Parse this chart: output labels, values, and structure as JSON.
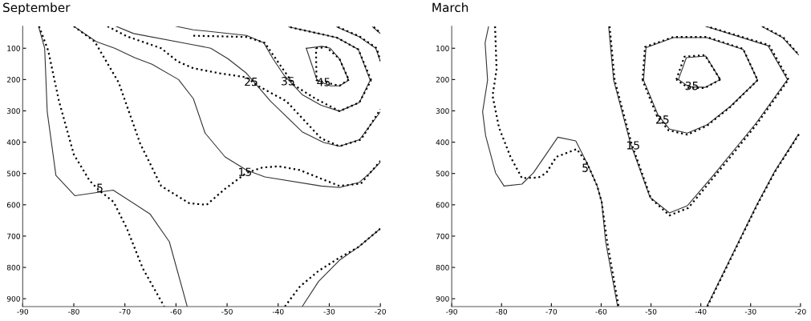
{
  "chart_data": [
    {
      "type": "line",
      "title": "September",
      "xlim": [
        -90,
        -20
      ],
      "ylim": [
        925,
        30
      ],
      "xticks": [
        -90,
        -80,
        -70,
        -60,
        -50,
        -40,
        -30,
        -20
      ],
      "yticks": [
        100,
        200,
        300,
        400,
        500,
        600,
        700,
        800,
        900
      ],
      "series": [
        {
          "color": "#333333",
          "line_style": "solid",
          "x": [
            -86.9,
            -85.7,
            -85.2,
            -83.5,
            -79.8,
            -72.3,
            -65.1,
            -61.3,
            -57.8
          ],
          "values": [
            30,
            100,
            303,
            506,
            571,
            553,
            629,
            718,
            925
          ]
        },
        {
          "color": "#000000",
          "line_style": "dotted",
          "x": [
            -86.8,
            -85,
            -82.9,
            -80,
            -76.9,
            -75.1,
            -72.2,
            -69.6,
            -66.5,
            -62.3
          ],
          "values": [
            30,
            108,
            269,
            439,
            523,
            553,
            591,
            676,
            803,
            925
          ]
        },
        {
          "color": "#333333",
          "line_style": "solid",
          "x": [
            -80,
            -75.6,
            -72,
            -68.1,
            -64.7,
            -59.5,
            -56.6,
            -54.3,
            -50.4,
            -46.2,
            -42.6,
            -31.6,
            -28,
            -24.1,
            -22,
            -20
          ],
          "values": [
            30,
            79,
            100,
            130,
            151,
            200,
            261,
            371,
            447,
            489,
            511,
            540,
            545,
            528,
            498,
            464
          ]
        },
        {
          "color": "#000000",
          "line_style": "dotted",
          "x": [
            -80,
            -75.9,
            -71.2,
            -67,
            -62.9,
            -57.4,
            -54,
            -50.4,
            -46.2,
            -43.1,
            -39.9,
            -35.8,
            -28,
            -23.8,
            -20
          ],
          "values": [
            30,
            79,
            210,
            405,
            540,
            595,
            600,
            549,
            498,
            481,
            477,
            489,
            540,
            532,
            460
          ]
        },
        {
          "color": "#333333",
          "line_style": "solid",
          "x": [
            -71.7,
            -68.3,
            -56.6,
            -53.2,
            -49.8,
            -46.2,
            -44.6,
            -41.5,
            -35.3,
            -31.1,
            -28,
            -24.1,
            -20
          ],
          "values": [
            30,
            53,
            89,
            100,
            134,
            180,
            210,
            269,
            367,
            401,
            413,
            392,
            303
          ]
        },
        {
          "color": "#000000",
          "line_style": "dotted",
          "x": [
            -73.4,
            -69.6,
            -62.9,
            -59.7,
            -56.6,
            -51.4,
            -46.2,
            -44.1,
            -38.4,
            -31.6,
            -28,
            -23.8,
            -20
          ],
          "values": [
            30,
            62,
            100,
            142,
            164,
            180,
            193,
            219,
            269,
            388,
            413,
            392,
            295
          ]
        },
        {
          "color": "#333333",
          "line_style": "solid",
          "x": [
            -60,
            -56.6,
            -46.2,
            -42.8,
            -41,
            -38.9,
            -35.3,
            -31.6,
            -28,
            -24.1,
            -22
          ],
          "values": [
            30,
            41,
            59,
            83,
            134,
            185,
            248,
            282,
            301,
            273,
            202
          ]
        },
        {
          "color": "#333333",
          "line_style": "solid",
          "x": [
            -22,
            -24.3,
            -28.5,
            -37.9
          ],
          "values": [
            202,
            104,
            66,
            32
          ]
        },
        {
          "color": "#000000",
          "line_style": "dotted",
          "x": [
            -56.6,
            -46.2,
            -42.6,
            -39.4,
            -36.8,
            -32.7,
            -28,
            -24.1,
            -21.8
          ],
          "values": [
            60,
            64,
            83,
            159,
            219,
            261,
            301,
            273,
            202
          ]
        },
        {
          "color": "#000000",
          "line_style": "dotted",
          "x": [
            -21.8,
            -24.3,
            -28.5,
            -37.9
          ],
          "values": [
            202,
            104,
            66,
            32
          ]
        },
        {
          "color": "#333333",
          "line_style": "solid",
          "x": [
            -34.5,
            -31.4,
            -29.8,
            -28,
            -26.2
          ],
          "values": [
            100,
            94,
            100,
            134,
            202
          ]
        },
        {
          "color": "#333333",
          "line_style": "solid",
          "x": [
            -26.2,
            -28,
            -29.8,
            -32.4,
            -34.5
          ],
          "values": [
            202,
            220,
            220,
            202,
            100
          ]
        },
        {
          "color": "#000000",
          "line_style": "dotted",
          "x": [
            -32.6,
            -30.6,
            -28,
            -26.2
          ],
          "values": [
            100,
            96,
            134,
            200
          ]
        },
        {
          "color": "#000000",
          "line_style": "dotted",
          "x": [
            -26.2,
            -28,
            -32.5,
            -32.6
          ],
          "values": [
            200,
            220,
            202,
            100
          ]
        },
        {
          "color": "#333333",
          "line_style": "solid",
          "x": [
            -28.5,
            -24.3,
            -20.9,
            -20
          ],
          "values": [
            32,
            62,
            100,
            142
          ]
        },
        {
          "color": "#000000",
          "line_style": "dotted",
          "x": [
            -28.3,
            -24.1,
            -20.7,
            -20
          ],
          "values": [
            32,
            62,
            100,
            140
          ]
        },
        {
          "color": "#333333",
          "line_style": "solid",
          "x": [
            -21.5,
            -20
          ],
          "values": [
            32,
            53
          ]
        },
        {
          "color": "#000000",
          "line_style": "dotted",
          "x": [
            -21.3,
            -20
          ],
          "values": [
            32,
            51
          ]
        },
        {
          "color": "#333333",
          "line_style": "solid",
          "x": [
            -35.3,
            -32.1,
            -28,
            -24.3,
            -20
          ],
          "values": [
            925,
            845,
            777,
            735,
            676
          ]
        },
        {
          "color": "#000000",
          "line_style": "dotted",
          "x": [
            -38.7,
            -35.8,
            -32.1,
            -28,
            -24.3,
            -20
          ],
          "values": [
            925,
            862,
            811,
            769,
            735,
            676
          ]
        }
      ],
      "annotations": [
        {
          "text": "5",
          "x": -74.9,
          "y": 549
        },
        {
          "text": "15",
          "x": -46.5,
          "y": 498
        },
        {
          "text": "25",
          "x": -45.3,
          "y": 210
        },
        {
          "text": "35",
          "x": -38.1,
          "y": 208
        },
        {
          "text": "45",
          "x": -31.1,
          "y": 211
        }
      ]
    },
    {
      "type": "line",
      "title": "March",
      "xlim": [
        -90,
        -20
      ],
      "ylim": [
        925,
        30
      ],
      "xticks": [
        -90,
        -80,
        -70,
        -60,
        -50,
        -40,
        -30,
        -20
      ],
      "yticks": [
        100,
        200,
        300,
        400,
        500,
        600,
        700,
        800,
        900
      ],
      "series": [
        {
          "color": "#333333",
          "line_style": "solid",
          "x": [
            -82.6,
            -83.3,
            -82.8,
            -83.8,
            -83.2,
            -81.2,
            -79.5,
            -75.9,
            -73.6,
            -68.7,
            -65.1,
            -62.8,
            -60.8,
            -59.9,
            -59.1,
            -56.7
          ],
          "values": [
            30,
            83,
            202,
            303,
            379,
            498,
            540,
            534,
            498,
            384,
            396,
            468,
            540,
            591,
            718,
            925
          ]
        },
        {
          "color": "#000000",
          "line_style": "dotted",
          "x": [
            -81.3,
            -81,
            -81.8,
            -80.5,
            -78.2,
            -75.9,
            -72.6,
            -71,
            -69,
            -64.9,
            -62.8,
            -60.8,
            -59.9,
            -58.8,
            -56.5
          ],
          "values": [
            30,
            168,
            252,
            354,
            447,
            515,
            513,
            498,
            447,
            422,
            468,
            540,
            591,
            718,
            925
          ]
        },
        {
          "color": "#333333",
          "line_style": "solid",
          "x": [
            -58.5,
            -57.5,
            -54.1,
            -50.2,
            -46.3,
            -42.7,
            -37.4,
            -34.1,
            -28.9,
            -22.6
          ],
          "values": [
            30,
            202,
            405,
            576,
            626,
            603,
            504,
            440,
            339,
            200
          ]
        },
        {
          "color": "#333333",
          "line_style": "solid",
          "x": [
            -22.6,
            -26.5,
            -39
          ],
          "values": [
            200,
            92,
            30
          ]
        },
        {
          "color": "#000000",
          "line_style": "dotted",
          "x": [
            -58.3,
            -57.3,
            -53.9,
            -50,
            -46.3,
            -42.5,
            -37.2,
            -33.9,
            -28.7,
            -22.4
          ],
          "values": [
            30,
            202,
            405,
            580,
            634,
            610,
            508,
            444,
            341,
            200
          ]
        },
        {
          "color": "#000000",
          "line_style": "dotted",
          "x": [
            -22.4,
            -26.3,
            -38.8
          ],
          "values": [
            200,
            90,
            30
          ]
        },
        {
          "color": "#333333",
          "line_style": "solid",
          "x": [
            -51.5,
            -51,
            -45.5,
            -38.8,
            -31.5,
            -28.6
          ],
          "values": [
            202,
            98,
            66,
            66,
            104,
            202
          ]
        },
        {
          "color": "#333333",
          "line_style": "solid",
          "x": [
            -28.6,
            -34.1,
            -38.8,
            -42.7,
            -46.3,
            -48.6,
            -51.5
          ],
          "values": [
            202,
            286,
            345,
            371,
            358,
            313,
            202
          ]
        },
        {
          "color": "#000000",
          "line_style": "dotted",
          "x": [
            -51.7,
            -51.2,
            -45.5,
            -38.8,
            -31.5,
            -28.6
          ],
          "values": [
            202,
            96,
            64,
            64,
            102,
            202
          ]
        },
        {
          "color": "#000000",
          "line_style": "dotted",
          "x": [
            -28.6,
            -34.1,
            -38.8,
            -42.7,
            -46.5,
            -48.8,
            -51.7
          ],
          "values": [
            202,
            288,
            348,
            376,
            362,
            316,
            202
          ]
        },
        {
          "color": "#333333",
          "line_style": "solid",
          "x": [
            -44.5,
            -42.9,
            -39,
            -36.1
          ],
          "values": [
            200,
            130,
            125,
            200
          ]
        },
        {
          "color": "#333333",
          "line_style": "solid",
          "x": [
            -36.1,
            -39.2,
            -42.4,
            -44.5
          ],
          "values": [
            200,
            225,
            223,
            200
          ]
        },
        {
          "color": "#000000",
          "line_style": "dotted",
          "x": [
            -44.9,
            -43.3,
            -39.2,
            -36.1
          ],
          "values": [
            200,
            127,
            122,
            200
          ]
        },
        {
          "color": "#000000",
          "line_style": "dotted",
          "x": [
            -36.1,
            -39.2,
            -42.6,
            -44.9
          ],
          "values": [
            200,
            227,
            226,
            200
          ]
        },
        {
          "color": "#333333",
          "line_style": "solid",
          "x": [
            -27.8,
            -23.6,
            -20.4
          ],
          "values": [
            30,
            66,
            121
          ]
        },
        {
          "color": "#000000",
          "line_style": "dotted",
          "x": [
            -27.6,
            -23.4,
            -20.3
          ],
          "values": [
            30,
            66,
            121
          ]
        },
        {
          "color": "#333333",
          "line_style": "solid",
          "x": [
            -20.4,
            -25.2,
            -28.9,
            -38.8
          ],
          "values": [
            375,
            494,
            604,
            925
          ]
        },
        {
          "color": "#000000",
          "line_style": "dotted",
          "x": [
            -20.3,
            -25.1,
            -28.8,
            -38.7
          ],
          "values": [
            375,
            494,
            604,
            925
          ]
        }
      ],
      "annotations": [
        {
          "text": "5",
          "x": -63.2,
          "y": 485
        },
        {
          "text": "15",
          "x": -53.6,
          "y": 413
        },
        {
          "text": "25",
          "x": -47.7,
          "y": 331
        },
        {
          "text": "35",
          "x": -41.8,
          "y": 223
        }
      ]
    }
  ]
}
